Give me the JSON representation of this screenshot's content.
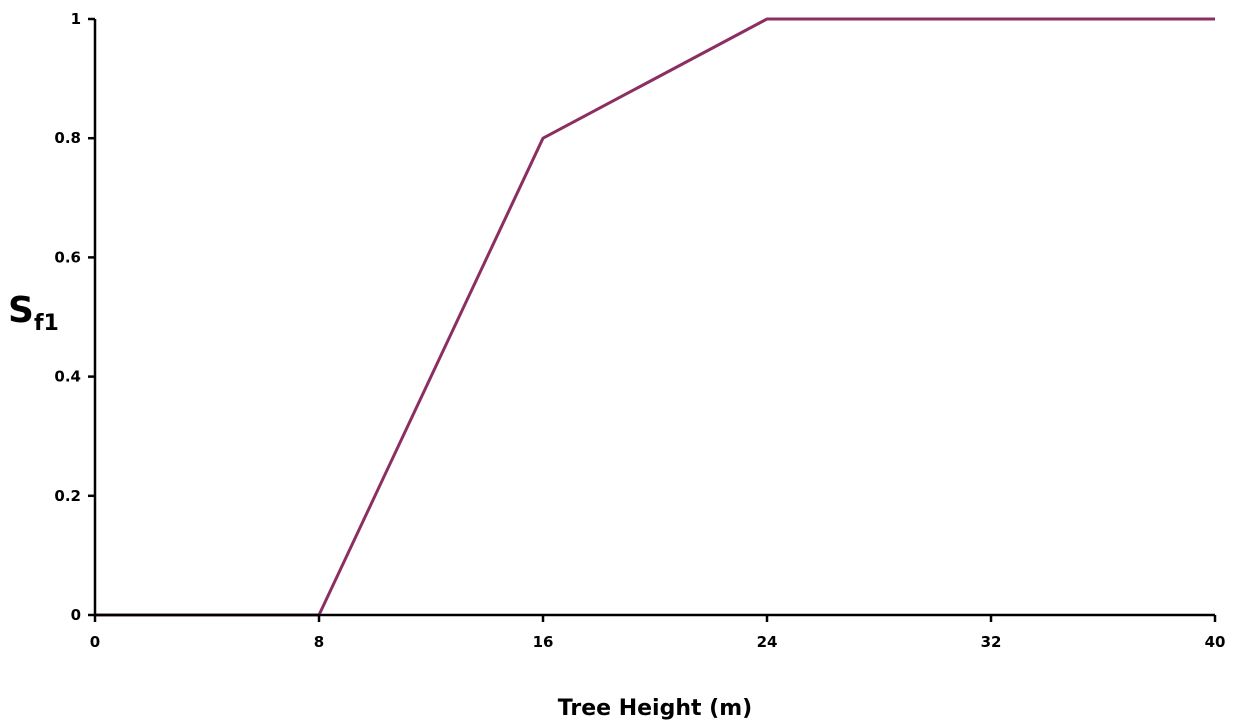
{
  "chart_data": {
    "type": "line",
    "title": "",
    "xlabel": "Tree Height (m)",
    "ylabel": {
      "main": "S",
      "subscript": "f1"
    },
    "xlim": [
      0,
      40
    ],
    "ylim": [
      0,
      1
    ],
    "x_ticks": [
      0,
      8,
      16,
      24,
      32,
      40
    ],
    "x_tick_labels": [
      "0",
      "8",
      "16",
      "24",
      "32",
      "40"
    ],
    "y_ticks": [
      0,
      0.2,
      0.4,
      0.6,
      0.8,
      1
    ],
    "y_tick_labels": [
      "0",
      "0.2",
      "0.4",
      "0.6",
      "0.8",
      "1"
    ],
    "grid": false,
    "legend": "none",
    "series": [
      {
        "color": "#8b2f63",
        "x": [
          0,
          8,
          16,
          24,
          40
        ],
        "y": [
          0,
          0,
          0.8,
          1,
          1
        ]
      }
    ]
  }
}
